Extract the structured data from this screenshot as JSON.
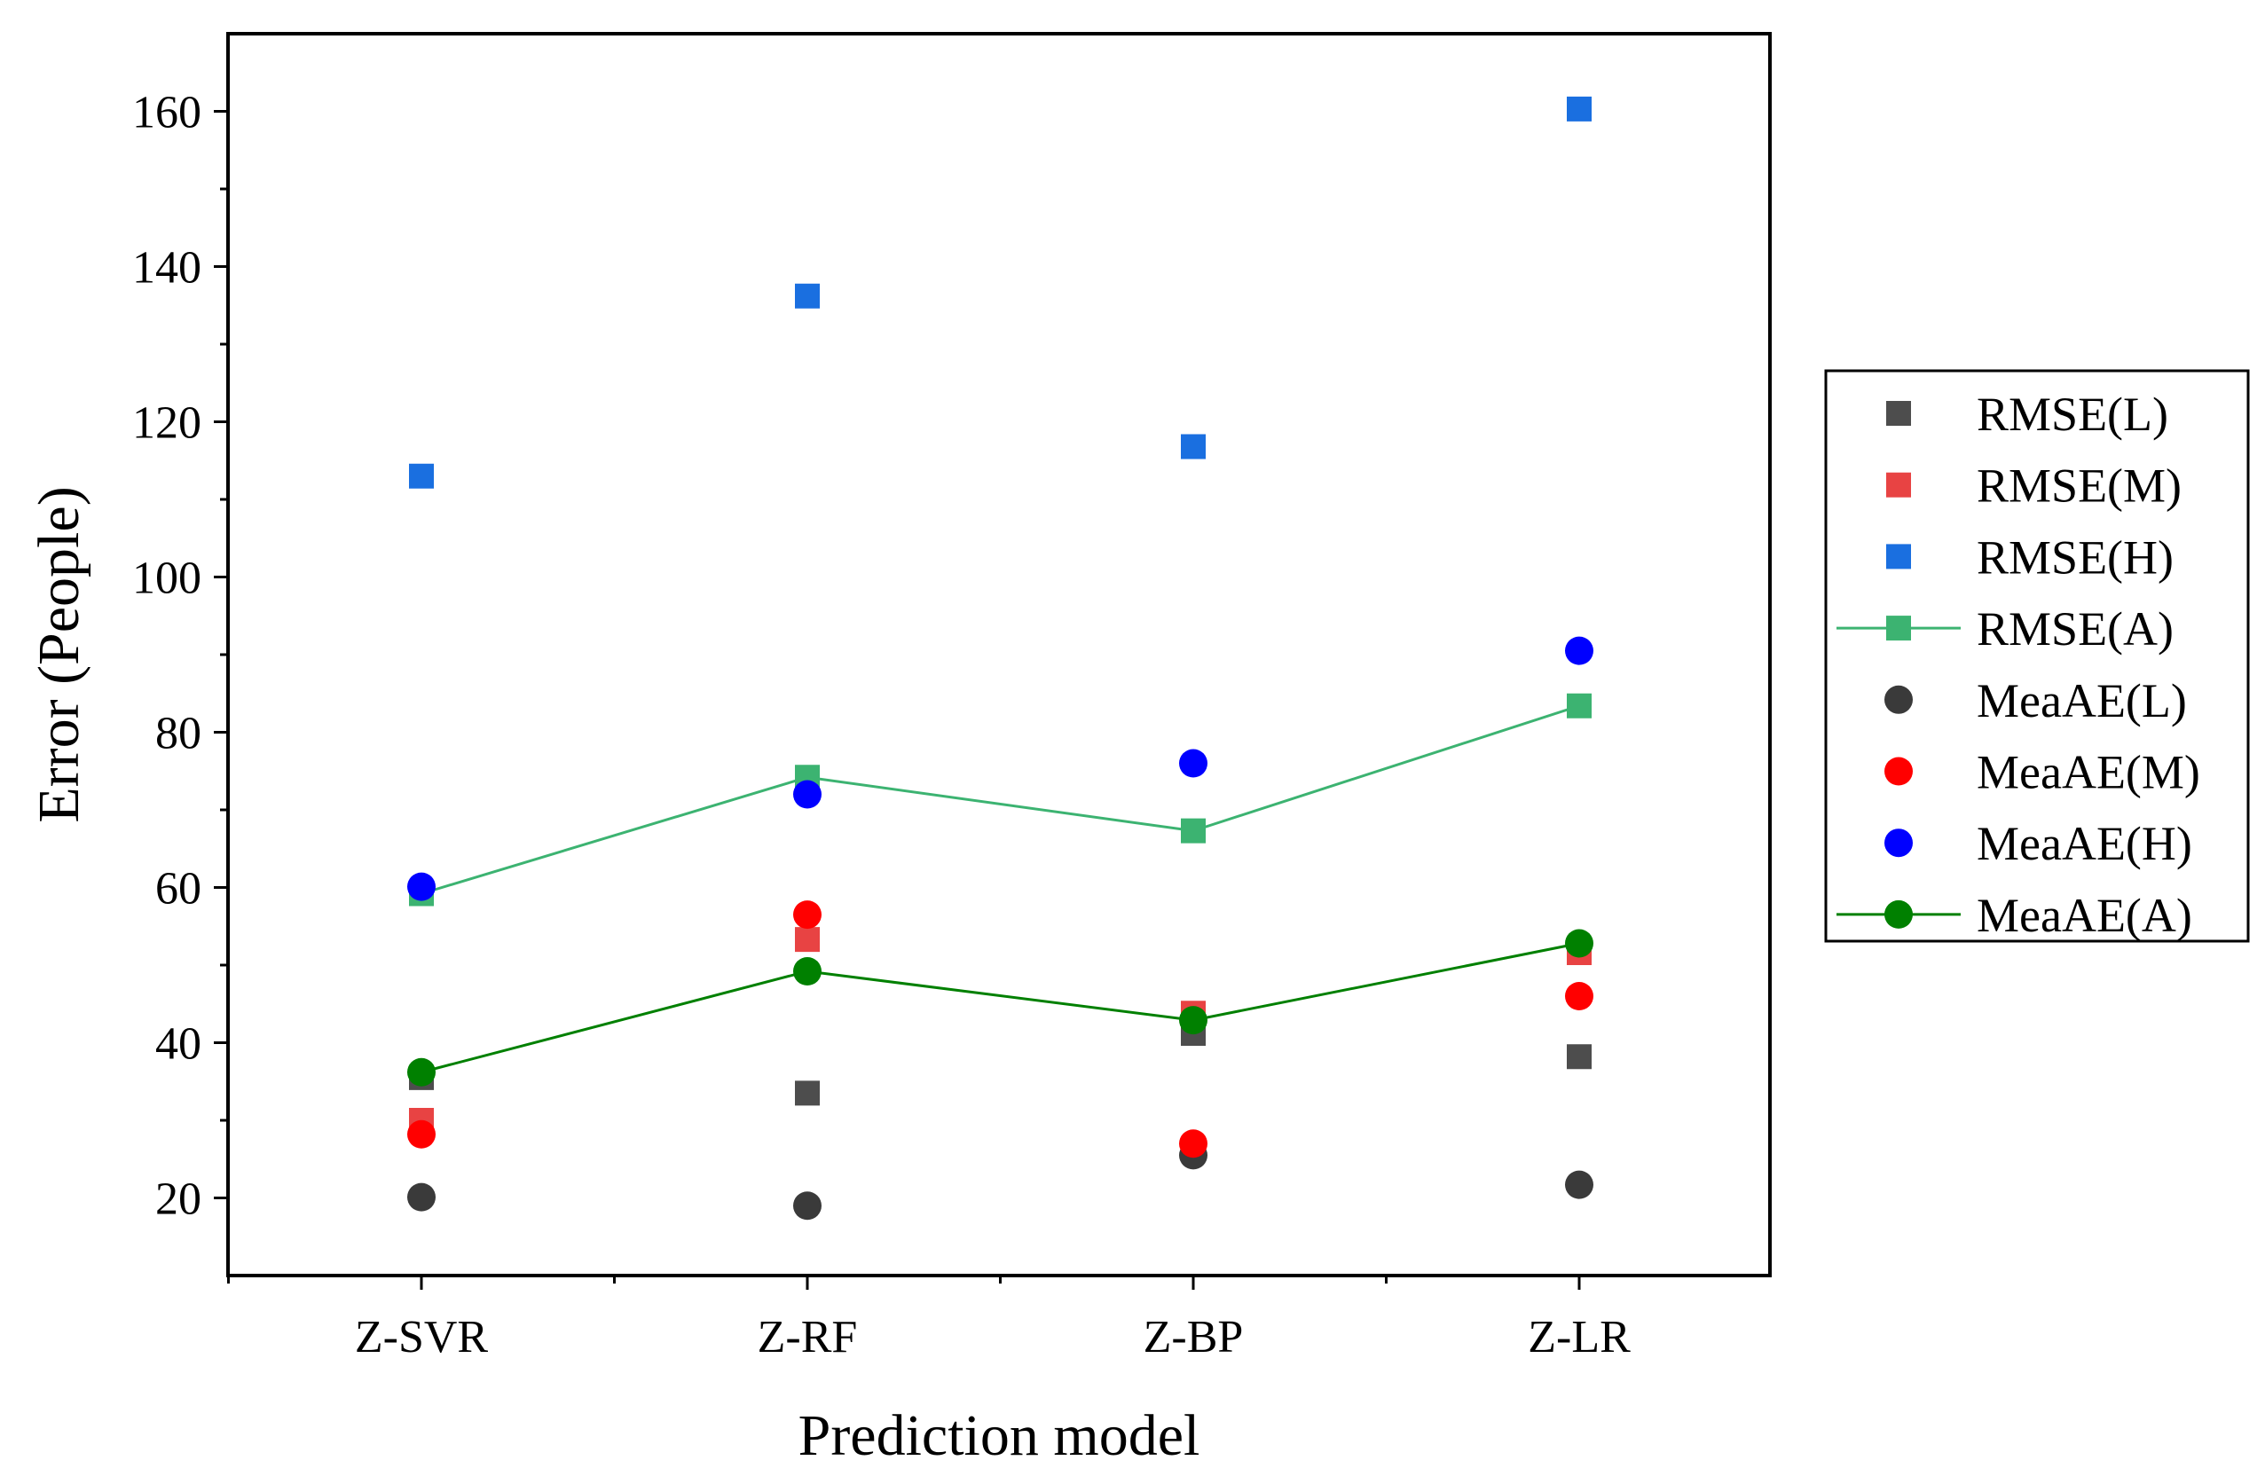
{
  "chart_data": {
    "type": "scatter",
    "title": "",
    "xlabel": "Prediction model",
    "ylabel": "Error (People)",
    "categories": [
      "Z-SVR",
      "Z-RF",
      "Z-BP",
      "Z-LR"
    ],
    "ylim": [
      10,
      170
    ],
    "yticks": [
      "20",
      "40",
      "60",
      "80",
      "100",
      "120",
      "140",
      "160"
    ],
    "grid": false,
    "legend_position": "right",
    "series": [
      {
        "name": "RMSE(L)",
        "marker": "square",
        "line": false,
        "color": "#4d4d4d",
        "values": [
          35.5,
          33.5,
          41.2,
          38.2
        ]
      },
      {
        "name": "RMSE(M)",
        "marker": "square",
        "line": false,
        "color": "#e84343",
        "values": [
          30.0,
          53.3,
          43.8,
          51.6
        ]
      },
      {
        "name": "RMSE(H)",
        "marker": "square",
        "line": false,
        "color": "#1a6fe0",
        "values": [
          113.0,
          136.2,
          116.8,
          160.3
        ]
      },
      {
        "name": "RMSE(A)",
        "marker": "square",
        "line": true,
        "color": "#3cb371",
        "values": [
          59.2,
          74.2,
          67.3,
          83.4
        ]
      },
      {
        "name": "MeaAE(L)",
        "marker": "circle",
        "line": false,
        "color": "#3a3a3a",
        "values": [
          20.1,
          19.0,
          25.5,
          21.7
        ]
      },
      {
        "name": "MeaAE(M)",
        "marker": "circle",
        "line": false,
        "color": "#ff0000",
        "values": [
          28.2,
          56.5,
          27.0,
          46.0
        ]
      },
      {
        "name": "MeaAE(H)",
        "marker": "circle",
        "line": false,
        "color": "#0000ff",
        "values": [
          60.1,
          72.0,
          76.0,
          90.5
        ]
      },
      {
        "name": "MeaAE(A)",
        "marker": "circle",
        "line": true,
        "color": "#008000",
        "values": [
          36.2,
          49.2,
          42.9,
          52.8
        ]
      }
    ]
  }
}
